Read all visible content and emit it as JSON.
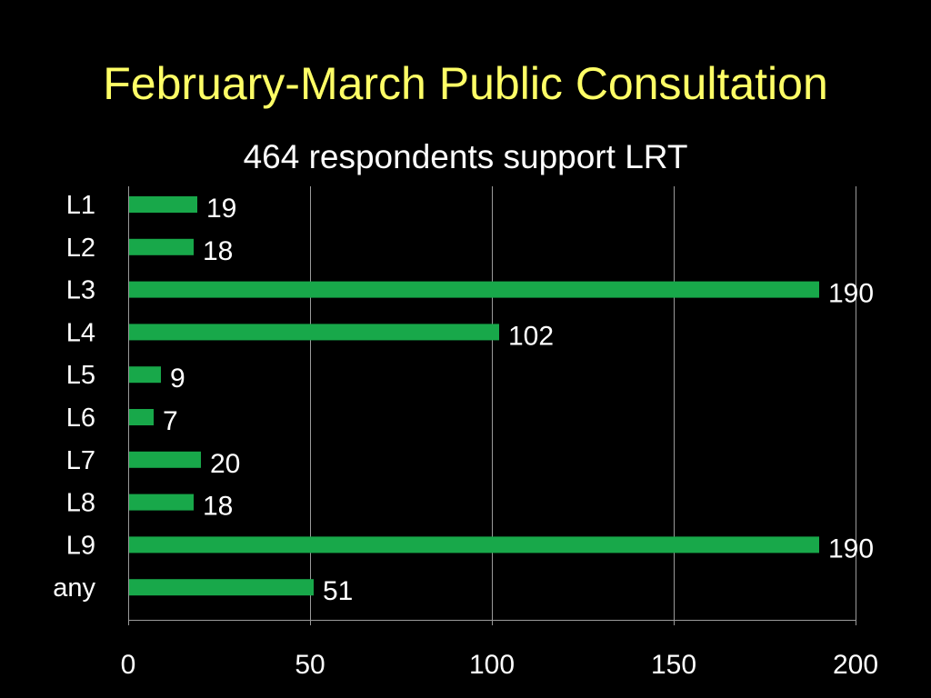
{
  "slide": {
    "title": "February-March Public Consultation",
    "subtitle": "464 respondents support LRT"
  },
  "colors": {
    "background": "#000000",
    "title": "#ffff66",
    "text": "#ffffff",
    "bar": "#18a84a",
    "grid": "#9a9a9a"
  },
  "chart_data": {
    "type": "bar",
    "orientation": "horizontal",
    "title": "",
    "xlabel": "",
    "ylabel": "",
    "categories": [
      "L1",
      "L2",
      "L3",
      "L4",
      "L5",
      "L6",
      "L7",
      "L8",
      "L9",
      "any"
    ],
    "values": [
      19,
      18,
      190,
      102,
      9,
      7,
      20,
      18,
      190,
      51
    ],
    "data_labels": [
      "19",
      "18",
      "190",
      "102",
      "9",
      "7",
      "20",
      "18",
      "190",
      "51"
    ],
    "xlim": [
      0,
      200
    ],
    "xticks": [
      0,
      50,
      100,
      150,
      200
    ],
    "xtick_labels": [
      "0",
      "50",
      "100",
      "150",
      "200"
    ],
    "grid": true,
    "legend": "none"
  }
}
